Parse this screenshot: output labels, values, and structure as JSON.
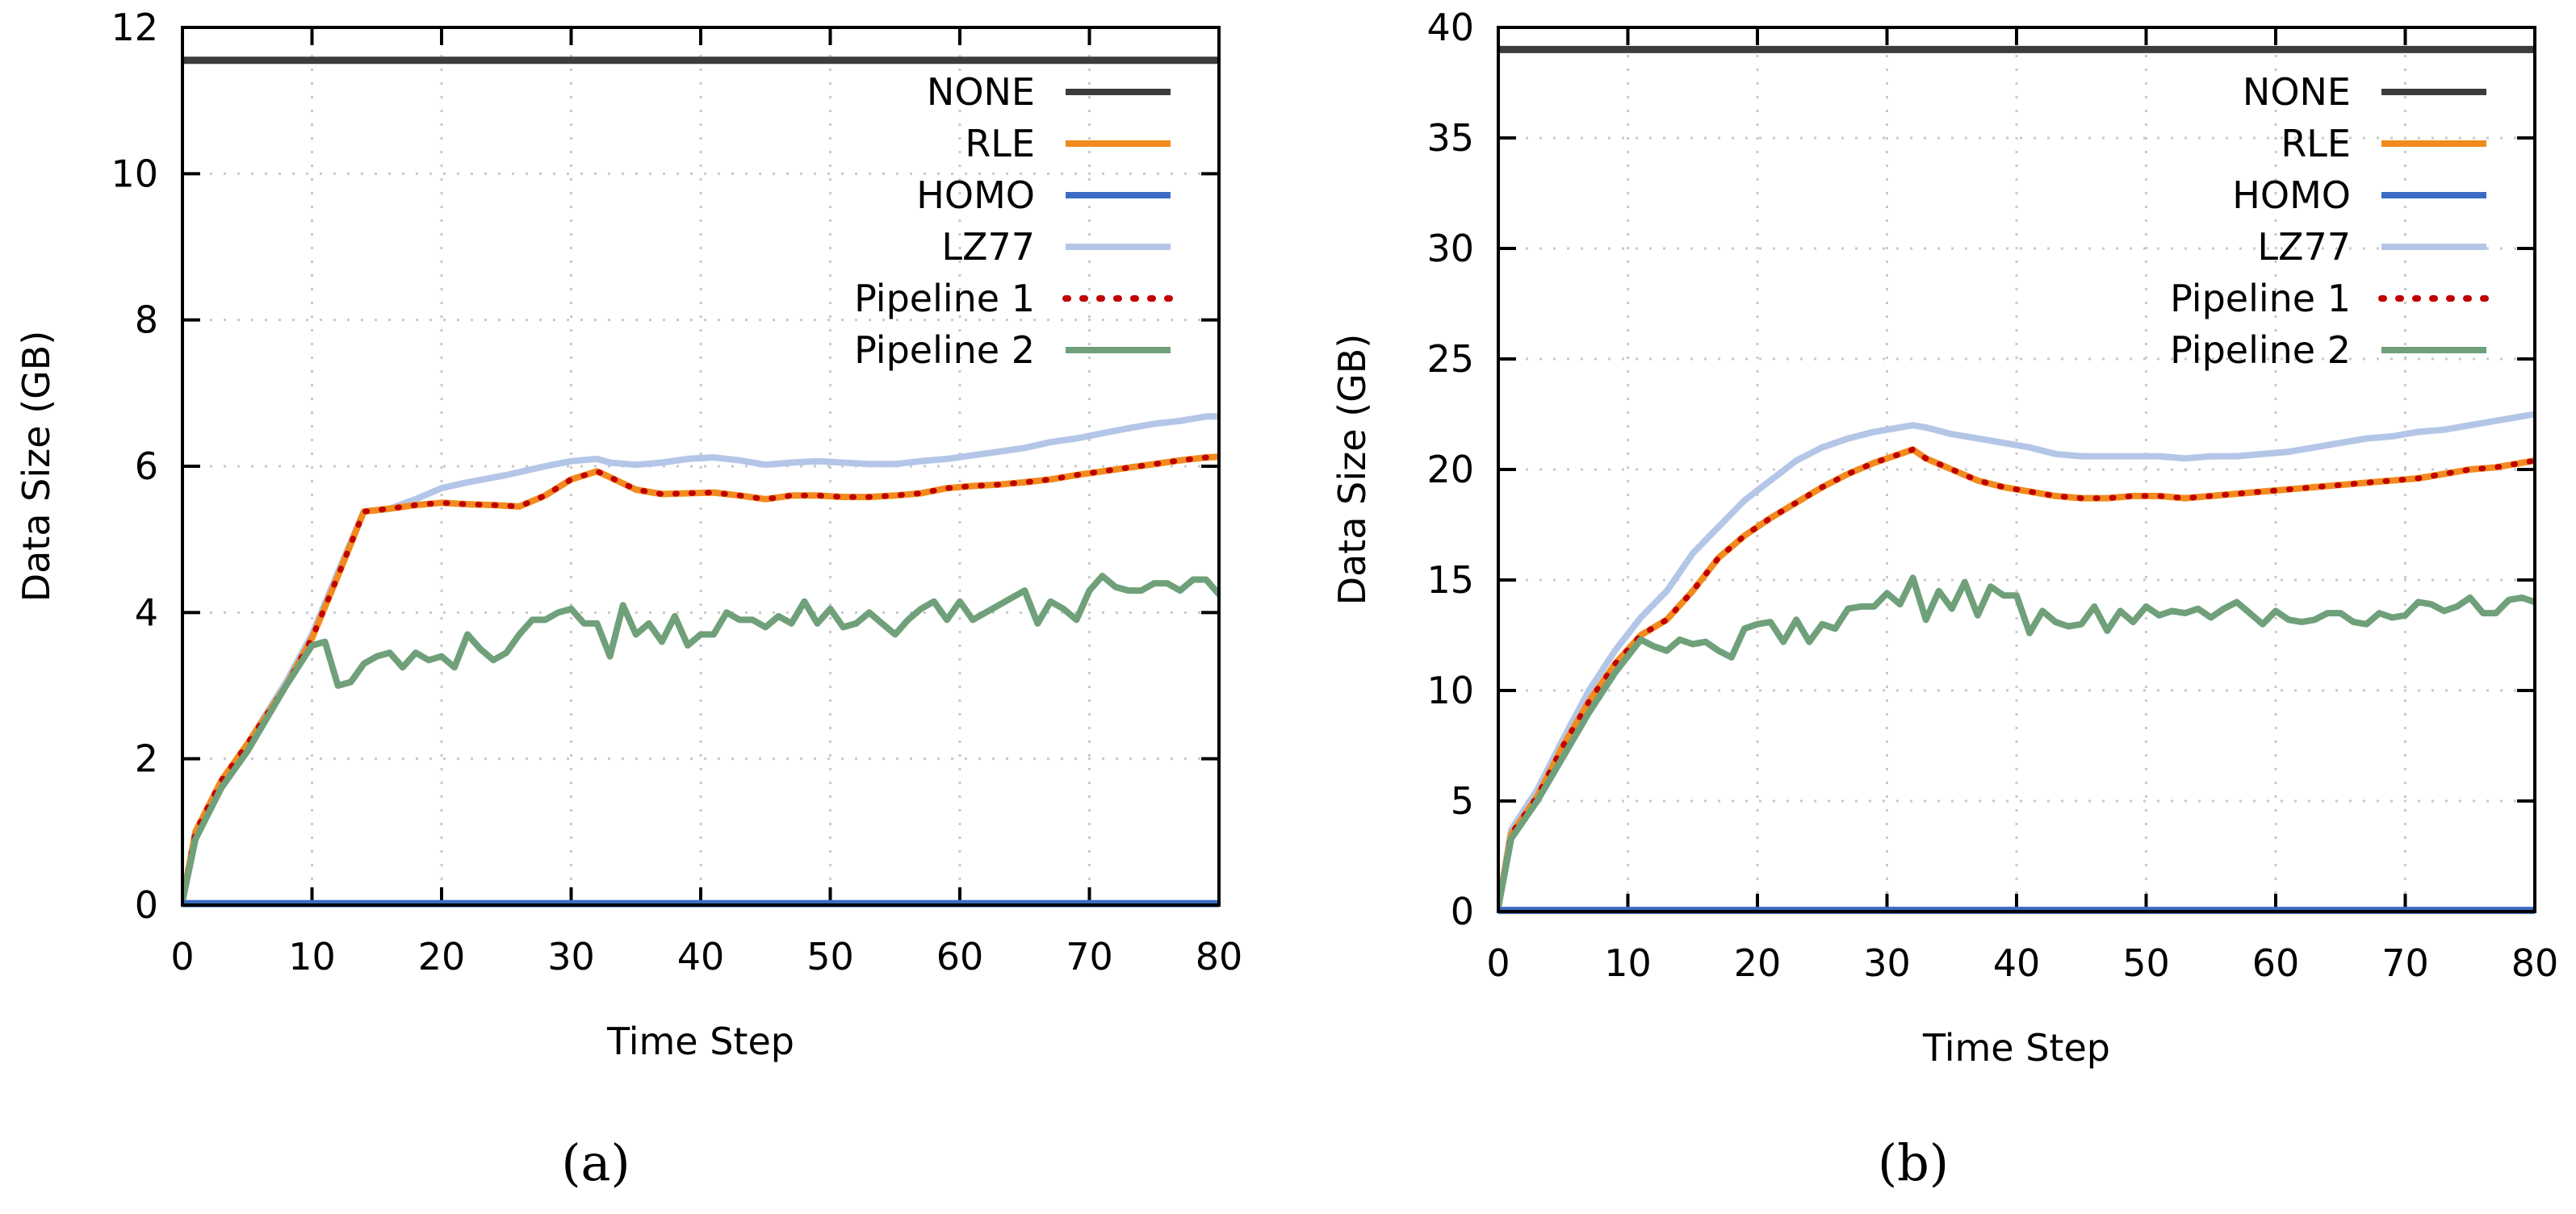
{
  "panel_labels": [
    "(a)",
    "(b)"
  ],
  "colors": {
    "NONE": "#3c3c3c",
    "RLE": "#f28a1e",
    "HOMO": "#3a6cc4",
    "LZ77": "#b4c6e7",
    "Pipeline 1": "#c00000",
    "Pipeline 2": "#6fa07a"
  },
  "chart_data": [
    {
      "type": "line",
      "panel": "a",
      "xlabel": "Time Step",
      "ylabel": "Data Size (GB)",
      "xlim": [
        0,
        80
      ],
      "ylim": [
        0,
        12
      ],
      "xticks": [
        0,
        10,
        20,
        30,
        40,
        50,
        60,
        70,
        80
      ],
      "yticks": [
        0,
        2,
        4,
        6,
        8,
        10,
        12
      ],
      "grid": true,
      "legend_position": "top-right",
      "series": [
        {
          "name": "NONE",
          "x": [
            0,
            80
          ],
          "y": [
            11.55,
            11.55
          ]
        },
        {
          "name": "RLE",
          "x": [
            0,
            1,
            3,
            5,
            8,
            10,
            12,
            14,
            16,
            18,
            20,
            22,
            24,
            26,
            28,
            30,
            32,
            33,
            35,
            37,
            39,
            41,
            43,
            45,
            47,
            49,
            51,
            53,
            55,
            57,
            59,
            61,
            63,
            65,
            67,
            69,
            71,
            73,
            75,
            77,
            79,
            80
          ],
          "y": [
            0.05,
            1.0,
            1.7,
            2.2,
            3.0,
            3.65,
            4.5,
            5.38,
            5.42,
            5.47,
            5.5,
            5.48,
            5.47,
            5.45,
            5.6,
            5.82,
            5.93,
            5.85,
            5.68,
            5.62,
            5.63,
            5.64,
            5.6,
            5.55,
            5.6,
            5.6,
            5.58,
            5.58,
            5.6,
            5.63,
            5.7,
            5.73,
            5.75,
            5.78,
            5.82,
            5.88,
            5.93,
            5.98,
            6.03,
            6.08,
            6.12,
            6.13
          ]
        },
        {
          "name": "HOMO",
          "x": [
            0,
            80
          ],
          "y": [
            0.02,
            0.02
          ]
        },
        {
          "name": "LZ77",
          "x": [
            0,
            1,
            3,
            5,
            8,
            10,
            12,
            14,
            16,
            18,
            20,
            22,
            25,
            28,
            30,
            32,
            33,
            35,
            37,
            39,
            41,
            43,
            45,
            47,
            49,
            51,
            53,
            55,
            57,
            59,
            61,
            63,
            65,
            67,
            69,
            71,
            73,
            75,
            77,
            79,
            80
          ],
          "y": [
            0.05,
            0.95,
            1.65,
            2.2,
            3.05,
            3.7,
            4.55,
            5.38,
            5.42,
            5.55,
            5.7,
            5.78,
            5.88,
            6.0,
            6.07,
            6.1,
            6.05,
            6.02,
            6.05,
            6.1,
            6.12,
            6.08,
            6.02,
            6.05,
            6.07,
            6.05,
            6.03,
            6.03,
            6.07,
            6.1,
            6.15,
            6.2,
            6.25,
            6.33,
            6.38,
            6.45,
            6.52,
            6.58,
            6.62,
            6.68,
            6.68
          ]
        },
        {
          "name": "Pipeline 1",
          "x": [
            0,
            1,
            3,
            5,
            8,
            10,
            12,
            14,
            16,
            18,
            20,
            22,
            24,
            26,
            28,
            30,
            32,
            33,
            35,
            37,
            39,
            41,
            43,
            45,
            47,
            49,
            51,
            53,
            55,
            57,
            59,
            61,
            63,
            65,
            67,
            69,
            71,
            73,
            75,
            77,
            79,
            80
          ],
          "y": [
            0.05,
            1.0,
            1.7,
            2.2,
            3.0,
            3.65,
            4.5,
            5.38,
            5.42,
            5.47,
            5.5,
            5.48,
            5.47,
            5.45,
            5.6,
            5.82,
            5.93,
            5.85,
            5.68,
            5.62,
            5.63,
            5.64,
            5.6,
            5.55,
            5.6,
            5.6,
            5.58,
            5.58,
            5.6,
            5.63,
            5.7,
            5.73,
            5.75,
            5.78,
            5.82,
            5.88,
            5.93,
            5.98,
            6.03,
            6.08,
            6.12,
            6.13
          ]
        },
        {
          "name": "Pipeline 2",
          "x": [
            0,
            1,
            3,
            5,
            8,
            10,
            11,
            12,
            13,
            14,
            15,
            16,
            17,
            18,
            19,
            20,
            21,
            22,
            23,
            24,
            25,
            26,
            27,
            28,
            29,
            30,
            31,
            32,
            33,
            34,
            35,
            36,
            37,
            38,
            39,
            40,
            41,
            42,
            43,
            44,
            45,
            46,
            47,
            48,
            49,
            50,
            51,
            52,
            53,
            54,
            55,
            56,
            57,
            58,
            59,
            60,
            61,
            62,
            63,
            64,
            65,
            66,
            67,
            68,
            69,
            70,
            71,
            72,
            73,
            74,
            75,
            76,
            77,
            78,
            79,
            80
          ],
          "y": [
            0.05,
            0.9,
            1.6,
            2.1,
            3.0,
            3.55,
            3.6,
            3.0,
            3.05,
            3.3,
            3.4,
            3.45,
            3.25,
            3.45,
            3.35,
            3.4,
            3.25,
            3.7,
            3.5,
            3.35,
            3.45,
            3.7,
            3.9,
            3.9,
            4.0,
            4.05,
            3.85,
            3.85,
            3.4,
            4.1,
            3.7,
            3.85,
            3.6,
            3.95,
            3.55,
            3.7,
            3.7,
            4.0,
            3.9,
            3.9,
            3.8,
            3.95,
            3.85,
            4.15,
            3.85,
            4.05,
            3.8,
            3.85,
            4.0,
            3.85,
            3.7,
            3.9,
            4.05,
            4.15,
            3.9,
            4.15,
            3.9,
            4.0,
            4.1,
            4.2,
            4.3,
            3.85,
            4.15,
            4.05,
            3.9,
            4.3,
            4.5,
            4.35,
            4.3,
            4.3,
            4.4,
            4.4,
            4.3,
            4.45,
            4.45,
            4.25
          ]
        }
      ]
    },
    {
      "type": "line",
      "panel": "b",
      "xlabel": "Time Step",
      "ylabel": "Data Size (GB)",
      "xlim": [
        0,
        80
      ],
      "ylim": [
        0,
        40
      ],
      "xticks": [
        0,
        10,
        20,
        30,
        40,
        50,
        60,
        70,
        80
      ],
      "yticks": [
        0,
        5,
        10,
        15,
        20,
        25,
        30,
        35,
        40
      ],
      "grid": true,
      "legend_position": "top-right",
      "series": [
        {
          "name": "NONE",
          "x": [
            0,
            80
          ],
          "y": [
            39.0,
            39.0
          ]
        },
        {
          "name": "RLE",
          "x": [
            0,
            1,
            3,
            5,
            7,
            9,
            11,
            13,
            15,
            17,
            19,
            21,
            23,
            25,
            27,
            29,
            31,
            32,
            33,
            35,
            37,
            39,
            41,
            43,
            45,
            47,
            49,
            51,
            53,
            55,
            57,
            59,
            61,
            63,
            65,
            67,
            69,
            71,
            73,
            75,
            77,
            79,
            80
          ],
          "y": [
            0.2,
            3.5,
            5.2,
            7.5,
            9.5,
            11.2,
            12.5,
            13.2,
            14.5,
            16.0,
            17.0,
            17.8,
            18.5,
            19.2,
            19.8,
            20.3,
            20.7,
            20.9,
            20.5,
            20.0,
            19.5,
            19.2,
            19.0,
            18.8,
            18.7,
            18.7,
            18.8,
            18.8,
            18.7,
            18.8,
            18.9,
            19.0,
            19.1,
            19.2,
            19.3,
            19.4,
            19.5,
            19.6,
            19.8,
            20.0,
            20.1,
            20.3,
            20.4
          ]
        },
        {
          "name": "HOMO",
          "x": [
            0,
            80
          ],
          "y": [
            0.05,
            0.05
          ]
        },
        {
          "name": "LZ77",
          "x": [
            0,
            1,
            3,
            5,
            7,
            9,
            11,
            13,
            15,
            17,
            19,
            21,
            23,
            25,
            27,
            29,
            31,
            32,
            33,
            35,
            37,
            39,
            41,
            43,
            45,
            47,
            49,
            51,
            53,
            55,
            57,
            59,
            61,
            63,
            65,
            67,
            69,
            71,
            73,
            75,
            77,
            79,
            80
          ],
          "y": [
            0.2,
            3.7,
            5.5,
            7.8,
            10.0,
            11.8,
            13.3,
            14.5,
            16.2,
            17.4,
            18.6,
            19.5,
            20.4,
            21.0,
            21.4,
            21.7,
            21.9,
            22.0,
            21.9,
            21.6,
            21.4,
            21.2,
            21.0,
            20.7,
            20.6,
            20.6,
            20.6,
            20.6,
            20.5,
            20.6,
            20.6,
            20.7,
            20.8,
            21.0,
            21.2,
            21.4,
            21.5,
            21.7,
            21.8,
            22.0,
            22.2,
            22.4,
            22.5
          ]
        },
        {
          "name": "Pipeline 1",
          "x": [
            0,
            1,
            3,
            5,
            7,
            9,
            11,
            13,
            15,
            17,
            19,
            21,
            23,
            25,
            27,
            29,
            31,
            32,
            33,
            35,
            37,
            39,
            41,
            43,
            45,
            47,
            49,
            51,
            53,
            55,
            57,
            59,
            61,
            63,
            65,
            67,
            69,
            71,
            73,
            75,
            77,
            79,
            80
          ],
          "y": [
            0.2,
            3.5,
            5.2,
            7.5,
            9.5,
            11.2,
            12.5,
            13.2,
            14.5,
            16.0,
            17.0,
            17.8,
            18.5,
            19.2,
            19.8,
            20.3,
            20.7,
            20.9,
            20.5,
            20.0,
            19.5,
            19.2,
            19.0,
            18.8,
            18.7,
            18.7,
            18.8,
            18.8,
            18.7,
            18.8,
            18.9,
            19.0,
            19.1,
            19.2,
            19.3,
            19.4,
            19.5,
            19.6,
            19.8,
            20.0,
            20.1,
            20.3,
            20.4
          ]
        },
        {
          "name": "Pipeline 2",
          "x": [
            0,
            1,
            3,
            5,
            7,
            9,
            11,
            12,
            13,
            14,
            15,
            16,
            17,
            18,
            19,
            20,
            21,
            22,
            23,
            24,
            25,
            26,
            27,
            28,
            29,
            30,
            31,
            32,
            33,
            34,
            35,
            36,
            37,
            38,
            39,
            40,
            41,
            42,
            43,
            44,
            45,
            46,
            47,
            48,
            49,
            50,
            51,
            52,
            53,
            54,
            55,
            56,
            57,
            58,
            59,
            60,
            61,
            62,
            63,
            64,
            65,
            66,
            67,
            68,
            69,
            70,
            71,
            72,
            73,
            74,
            75,
            76,
            77,
            78,
            79,
            80
          ],
          "y": [
            0.2,
            3.3,
            5.0,
            7.0,
            9.0,
            10.8,
            12.3,
            12.0,
            11.8,
            12.3,
            12.1,
            12.2,
            11.8,
            11.5,
            12.8,
            13.0,
            13.1,
            12.2,
            13.2,
            12.2,
            13.0,
            12.8,
            13.7,
            13.8,
            13.8,
            14.4,
            13.9,
            15.1,
            13.2,
            14.5,
            13.7,
            14.9,
            13.4,
            14.7,
            14.3,
            14.3,
            12.6,
            13.6,
            13.1,
            12.9,
            13.0,
            13.8,
            12.7,
            13.6,
            13.1,
            13.8,
            13.4,
            13.6,
            13.5,
            13.7,
            13.3,
            13.7,
            14.0,
            13.5,
            13.0,
            13.6,
            13.2,
            13.1,
            13.2,
            13.5,
            13.5,
            13.1,
            13.0,
            13.5,
            13.3,
            13.4,
            14.0,
            13.9,
            13.6,
            13.8,
            14.2,
            13.5,
            13.5,
            14.1,
            14.2,
            14.0
          ]
        }
      ]
    }
  ]
}
